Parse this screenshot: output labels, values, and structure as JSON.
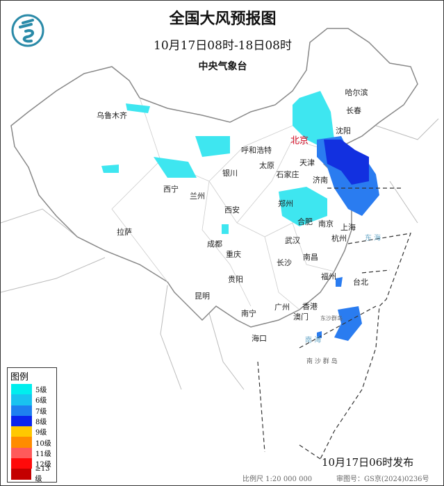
{
  "header": {
    "title": "全国大风预报图",
    "period": "10月17日08时-18日08时",
    "agency": "中央气象台"
  },
  "logo": {
    "icon": "cma-dragon-logo",
    "color": "#2a8aa8"
  },
  "cities": {
    "urumqi": "乌鲁木齐",
    "harbin": "哈尔滨",
    "changchun": "长春",
    "shenyang": "沈阳",
    "hohhot": "呼和浩特",
    "beijing": "北京",
    "tianjin": "天津",
    "taiyuan": "太原",
    "shijiazhuang": "石家庄",
    "yinchuan": "银川",
    "jinan": "济南",
    "xining": "西宁",
    "lanzhou": "兰州",
    "xian": "西安",
    "zhengzhou": "郑州",
    "hefei": "合肥",
    "nanjing": "南京",
    "shanghai": "上海",
    "lhasa": "拉萨",
    "chengdu": "成都",
    "wuhan": "武汉",
    "hangzhou": "杭州",
    "chongqing": "重庆",
    "changsha": "长沙",
    "nanchang": "南昌",
    "guiyang": "贵阳",
    "fuzhou": "福州",
    "taipei": "台北",
    "kunming": "昆明",
    "nanning": "南宁",
    "guangzhou": "广州",
    "hongkong": "香港",
    "macau": "澳门",
    "haikou": "海口"
  },
  "seas": {
    "east_sea": "东 海",
    "south_sea": "南 海",
    "dongsha": "东沙群岛",
    "nansha": "南 沙 群 岛"
  },
  "legend": {
    "title": "图例",
    "items": [
      {
        "label": "5级",
        "color": "#00eeee"
      },
      {
        "label": "6级",
        "color": "#19c3f0"
      },
      {
        "label": "7级",
        "color": "#1e80f0"
      },
      {
        "label": "8级",
        "color": "#0a24ee"
      },
      {
        "label": "9级",
        "color": "#ffc800"
      },
      {
        "label": "10级",
        "color": "#ff8c00"
      },
      {
        "label": "11级",
        "color": "#ff5a5a"
      },
      {
        "label": "12级",
        "color": "#ff0a0a"
      },
      {
        "label": "≥13级",
        "color": "#c40000"
      }
    ]
  },
  "footer": {
    "issued": "10月17日06时发布",
    "scale": "比例尺 1:20 000 000",
    "approval": "审图号：GS京(2024)0236号"
  }
}
